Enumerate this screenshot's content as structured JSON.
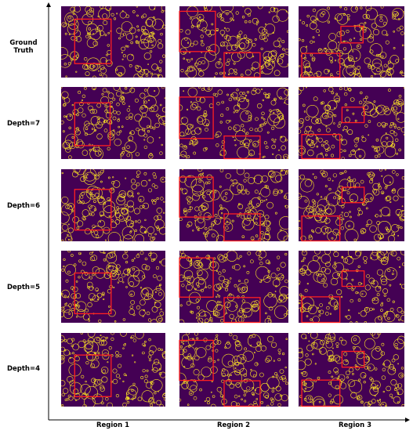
{
  "rows": [
    {
      "label": "Ground Truth"
    },
    {
      "label": "Depth=7"
    },
    {
      "label": "Depth=6"
    },
    {
      "label": "Depth=5"
    },
    {
      "label": "Depth=4"
    }
  ],
  "columns": [
    {
      "label": "Region 1"
    },
    {
      "label": "Region 2"
    },
    {
      "label": "Region 3"
    }
  ],
  "colors": {
    "panel_bg": "#440154",
    "circle": "#fde725",
    "region_box": "#ff2020",
    "axis": "#000000"
  }
}
